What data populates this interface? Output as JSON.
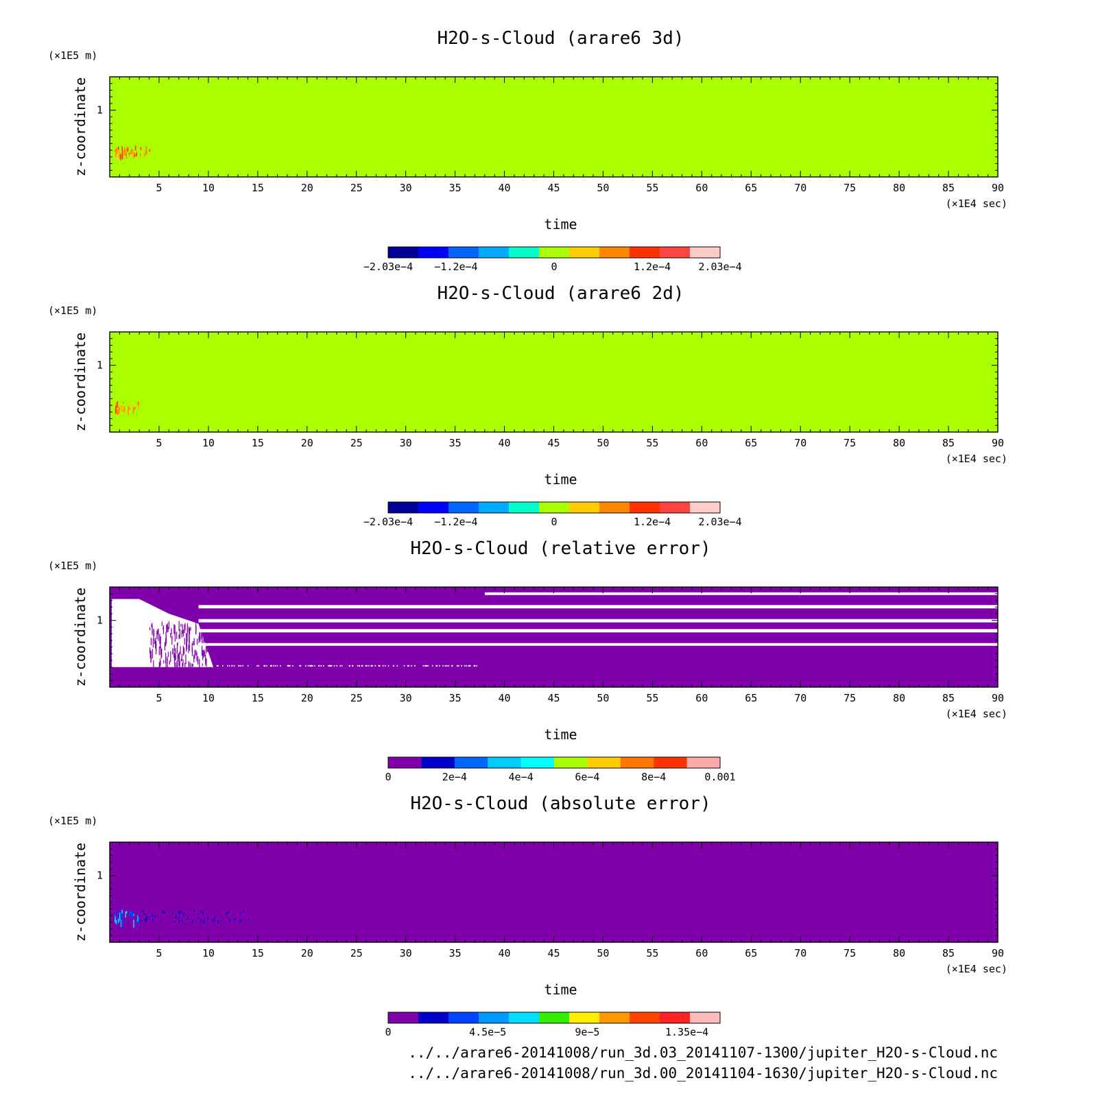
{
  "chart_data": [
    {
      "type": "heatmap",
      "title": "H2O-s-Cloud (arare6 3d)",
      "xlabel": "time",
      "ylabel": "z-coordinate",
      "x_unit": "(×1E4 sec)",
      "y_unit": "(×1E5 m)",
      "xlim": [
        0,
        90
      ],
      "ylim": [
        0,
        1.5
      ],
      "x_ticks": [
        5,
        10,
        15,
        20,
        25,
        30,
        35,
        40,
        45,
        50,
        55,
        60,
        65,
        70,
        75,
        80,
        85,
        90
      ],
      "x_tick_labels": [
        "5",
        "10",
        "15",
        "20",
        "25",
        "30",
        "35",
        "40",
        "45",
        "50",
        "55",
        "60",
        "65",
        "70",
        "75",
        "80",
        "85",
        "90"
      ],
      "y_ticks": [
        1
      ],
      "y_tick_labels": [
        "1"
      ],
      "field": "uniform near 0 everywhere; small positive patch near t=0.5–4, z≈0.35–0.45",
      "background_color": "#aaff00",
      "colorbar": {
        "colors": [
          "#000099",
          "#0000ff",
          "#0066ff",
          "#00aaff",
          "#00ffcc",
          "#aaff00",
          "#ffcc00",
          "#ff8800",
          "#ff3300",
          "#ff4444",
          "#ffcccc"
        ],
        "ticks": [
          -0.000203,
          -0.00012,
          0,
          0.00012,
          0.000203
        ],
        "tick_labels": [
          "−2.03e−4",
          "−1.2e−4",
          "0",
          "1.2e−4",
          "2.03e−4"
        ],
        "range": [
          -0.000203,
          0.000203
        ]
      }
    },
    {
      "type": "heatmap",
      "title": "H2O-s-Cloud (arare6 2d)",
      "xlabel": "time",
      "ylabel": "z-coordinate",
      "x_unit": "(×1E4 sec)",
      "y_unit": "(×1E5 m)",
      "xlim": [
        0,
        90
      ],
      "ylim": [
        0,
        1.5
      ],
      "x_ticks": [
        5,
        10,
        15,
        20,
        25,
        30,
        35,
        40,
        45,
        50,
        55,
        60,
        65,
        70,
        75,
        80,
        85,
        90
      ],
      "x_tick_labels": [
        "5",
        "10",
        "15",
        "20",
        "25",
        "30",
        "35",
        "40",
        "45",
        "50",
        "55",
        "60",
        "65",
        "70",
        "75",
        "80",
        "85",
        "90"
      ],
      "y_ticks": [
        1
      ],
      "y_tick_labels": [
        "1"
      ],
      "field": "uniform near 0 everywhere; small positive patch near t=0.5–3, z≈0.35–0.45",
      "background_color": "#aaff00",
      "colorbar": {
        "colors": [
          "#000099",
          "#0000ff",
          "#0066ff",
          "#00aaff",
          "#00ffcc",
          "#aaff00",
          "#ffcc00",
          "#ff8800",
          "#ff3300",
          "#ff4444",
          "#ffcccc"
        ],
        "ticks": [
          -0.000203,
          -0.00012,
          0,
          0.00012,
          0.000203
        ],
        "tick_labels": [
          "−2.03e−4",
          "−1.2e−4",
          "0",
          "1.2e−4",
          "2.03e−4"
        ],
        "range": [
          -0.000203,
          0.000203
        ]
      }
    },
    {
      "type": "heatmap",
      "title": "H2O-s-Cloud (relative error)",
      "xlabel": "time",
      "ylabel": "z-coordinate",
      "x_unit": "(×1E4 sec)",
      "y_unit": "(×1E5 m)",
      "xlim": [
        0,
        90
      ],
      "ylim": [
        0,
        1.5
      ],
      "x_ticks": [
        5,
        10,
        15,
        20,
        25,
        30,
        35,
        40,
        45,
        50,
        55,
        60,
        65,
        70,
        75,
        80,
        85,
        90
      ],
      "x_tick_labels": [
        "5",
        "10",
        "15",
        "20",
        "25",
        "30",
        "35",
        "40",
        "45",
        "50",
        "55",
        "60",
        "65",
        "70",
        "75",
        "80",
        "85",
        "90"
      ],
      "y_ticks": [
        1
      ],
      "y_tick_labels": [
        "1"
      ],
      "field": "mostly 0 (purple) with white (missing) bands; white region t<10 for z≈0.3–1.3; thin white streaks at z≈0.65, 0.85, 1.0, 1.2, 1.4",
      "background_color": "#7f00aa",
      "white_bands_z": [
        [
          0.62,
          0.66
        ],
        [
          0.82,
          0.87
        ],
        [
          0.97,
          1.02
        ],
        [
          1.18,
          1.23
        ],
        [
          1.38,
          1.42
        ]
      ],
      "colorbar": {
        "colors": [
          "#7f00aa",
          "#0000cc",
          "#0066ff",
          "#00ccff",
          "#00ffff",
          "#aaff00",
          "#ffcc00",
          "#ff7700",
          "#ff3300",
          "#ffaaaa"
        ],
        "ticks": [
          0,
          0.0002,
          0.0004,
          0.0006,
          0.0008,
          0.001
        ],
        "tick_labels": [
          "0",
          "2e−4",
          "4e−4",
          "6e−4",
          "8e−4",
          "0.001"
        ],
        "range": [
          0,
          0.001
        ]
      }
    },
    {
      "type": "heatmap",
      "title": "H2O-s-Cloud (absolute error)",
      "xlabel": "time",
      "ylabel": "z-coordinate",
      "x_unit": "(×1E4 sec)",
      "y_unit": "(×1E5 m)",
      "xlim": [
        0,
        90
      ],
      "ylim": [
        0,
        1.5
      ],
      "x_ticks": [
        5,
        10,
        15,
        20,
        25,
        30,
        35,
        40,
        45,
        50,
        55,
        60,
        65,
        70,
        75,
        80,
        85,
        90
      ],
      "x_tick_labels": [
        "5",
        "10",
        "15",
        "20",
        "25",
        "30",
        "35",
        "40",
        "45",
        "50",
        "55",
        "60",
        "65",
        "70",
        "75",
        "80",
        "85",
        "90"
      ],
      "y_ticks": [
        1
      ],
      "y_tick_labels": [
        "1"
      ],
      "field": "mostly 0 (purple); small blue/cyan patch near t=0.5–4, z≈0.3–0.5 fading to t≈15",
      "background_color": "#7f00aa",
      "colorbar": {
        "colors": [
          "#7f00aa",
          "#0000cc",
          "#0044ff",
          "#0099ff",
          "#00ddff",
          "#33ee00",
          "#ffee00",
          "#ff9900",
          "#ff4400",
          "#ff2222",
          "#ffbbbb"
        ],
        "ticks": [
          0,
          4.5e-05,
          9e-05,
          0.000135
        ],
        "tick_labels": [
          "0",
          "4.5e−5",
          "9e−5",
          "1.35e−4"
        ],
        "range": [
          0,
          0.00015
        ]
      }
    }
  ],
  "footer": {
    "line1": "../../arare6-20141008/run_3d.03_20141107-1300/jupiter_H2O-s-Cloud.nc",
    "line2": "../../arare6-20141008/run_3d.00_20141104-1630/jupiter_H2O-s-Cloud.nc"
  }
}
